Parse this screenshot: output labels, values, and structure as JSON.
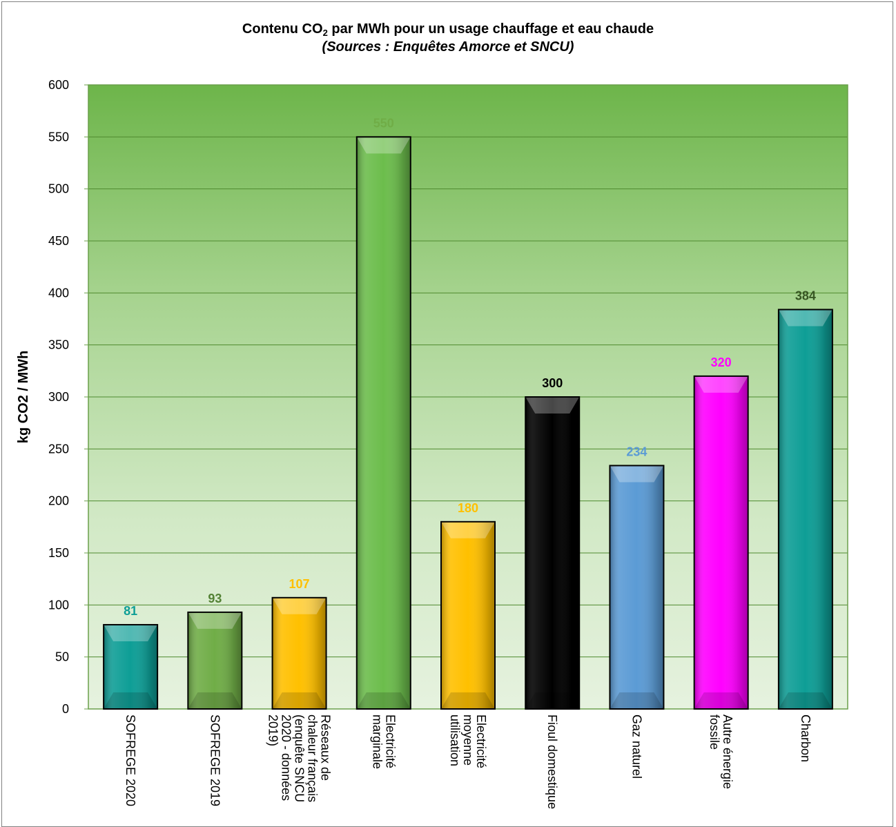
{
  "chart_data": {
    "type": "bar",
    "title_main": "Contenu CO",
    "title_sub": "2",
    "title_rest": " par MWh pour un usage chauffage et eau chaude",
    "subtitle_prefix": "(",
    "subtitle_italic": "Sources : Enquêtes Amorce et SNCU",
    "subtitle_suffix": ")",
    "ylabel": "kg CO2 / MWh",
    "ylim": [
      0,
      600
    ],
    "yticks": [
      "0",
      "50",
      "100",
      "150",
      "200",
      "250",
      "300",
      "350",
      "400",
      "450",
      "500",
      "550",
      "600"
    ],
    "grid": true,
    "categories": [
      [
        "SOFREGE 2020"
      ],
      [
        "SOFREGE 2019"
      ],
      [
        "Réseaux de",
        "chaleur français",
        "(enquête SNCU",
        "2020 - données",
        "2019)"
      ],
      [
        "Electricité",
        "marginale"
      ],
      [
        "Electricité",
        "moyenne",
        "utilisation"
      ],
      [
        "Fioul domestique"
      ],
      [
        "Gaz naturel"
      ],
      [
        "Autre énergie",
        "fossile"
      ],
      [
        "Charbon"
      ]
    ],
    "values": [
      81,
      93,
      107,
      550,
      180,
      300,
      234,
      320,
      384
    ],
    "value_labels": [
      "81",
      "93",
      "107",
      "550",
      "180",
      "300",
      "234",
      "320",
      "384"
    ],
    "bar_colors": [
      "#0e9e96",
      "#70ad47",
      "#ffc000",
      "#6cbd4c",
      "#ffc000",
      "#000000",
      "#5b9bd5",
      "#ff00ff",
      "#0e9e96"
    ],
    "label_colors": [
      "#0e9e96",
      "#548235",
      "#ffc000",
      "#70ad47",
      "#ffc000",
      "#000000",
      "#5b9bd5",
      "#ff00ff",
      "#375623"
    ]
  }
}
